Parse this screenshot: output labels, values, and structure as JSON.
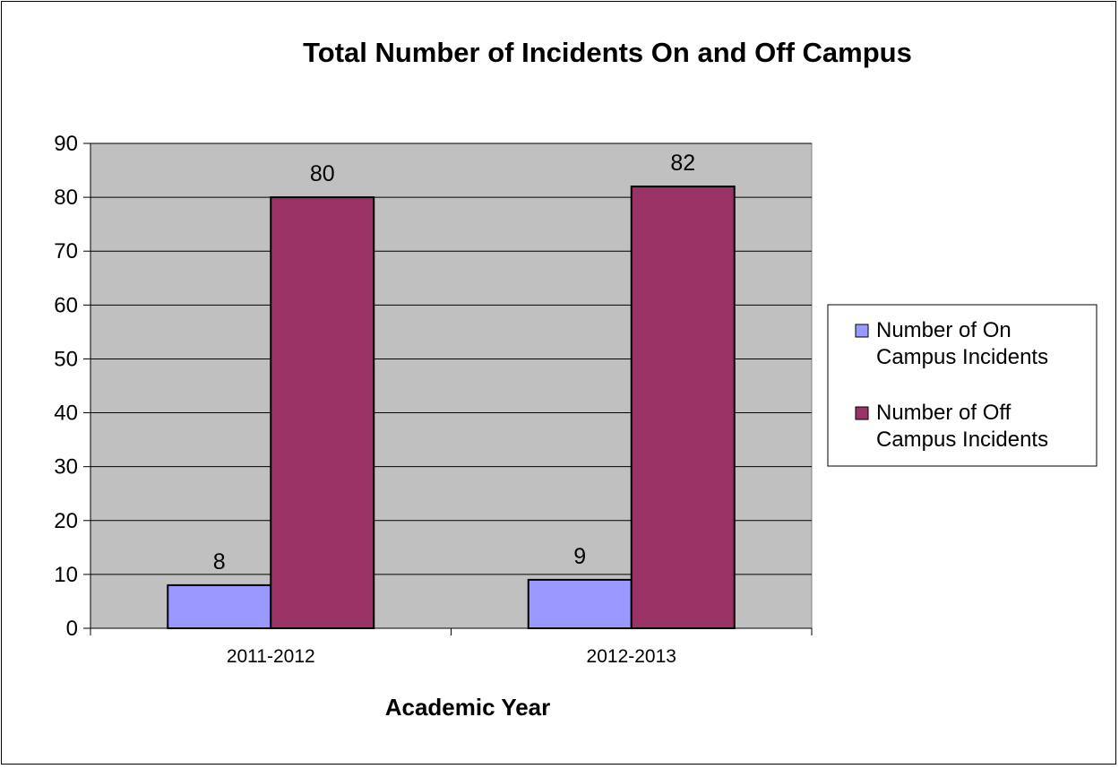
{
  "chart_data": {
    "type": "bar",
    "title": "Total Number of Incidents On and Off Campus",
    "xlabel": "Academic Year",
    "ylabel": "",
    "categories": [
      "2011-2012",
      "2012-2013"
    ],
    "series": [
      {
        "name": "Number of On Campus Incidents",
        "legend_lines": [
          "Number of On",
          "Campus Incidents"
        ],
        "values": [
          8,
          9
        ],
        "color": "#9999ff"
      },
      {
        "name": "Number of Off Campus Incidents",
        "legend_lines": [
          "Number of Off",
          "Campus Incidents"
        ],
        "values": [
          80,
          82
        ],
        "color": "#993366"
      }
    ],
    "ylim": [
      0,
      90
    ],
    "yticks": [
      0,
      10,
      20,
      30,
      40,
      50,
      60,
      70,
      80,
      90
    ],
    "grid": true,
    "plot_background": "#c0c0c0",
    "legend": "right",
    "data_labels": true
  }
}
